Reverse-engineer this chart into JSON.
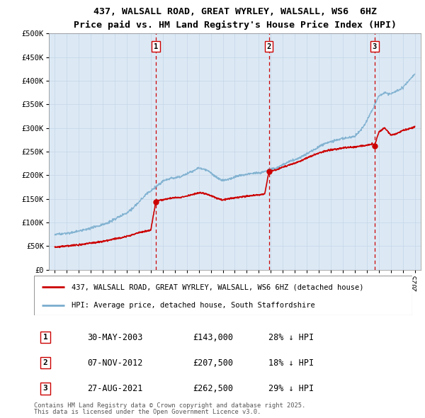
{
  "title": "437, WALSALL ROAD, GREAT WYRLEY, WALSALL, WS6  6HZ",
  "subtitle": "Price paid vs. HM Land Registry's House Price Index (HPI)",
  "background_color": "#dce9f5",
  "plot_bg_color": "#dce9f5",
  "ylim": [
    0,
    500000
  ],
  "yticks": [
    0,
    50000,
    100000,
    150000,
    200000,
    250000,
    300000,
    350000,
    400000,
    450000,
    500000
  ],
  "ytick_labels": [
    "£0",
    "£50K",
    "£100K",
    "£150K",
    "£200K",
    "£250K",
    "£300K",
    "£350K",
    "£400K",
    "£450K",
    "£500K"
  ],
  "xlim_start": 1994.5,
  "xlim_end": 2025.5,
  "sales": [
    {
      "year": 2003.41,
      "price": 143000,
      "label": "1"
    },
    {
      "year": 2012.84,
      "price": 207500,
      "label": "2"
    },
    {
      "year": 2021.65,
      "price": 262500,
      "label": "3"
    }
  ],
  "red_line_color": "#cc0000",
  "blue_line_color": "#7aadce",
  "marker_color": "#cc0000",
  "dashed_line_color": "#cc0000",
  "legend_label_red": "437, WALSALL ROAD, GREAT WYRLEY, WALSALL, WS6 6HZ (detached house)",
  "legend_label_blue": "HPI: Average price, detached house, South Staffordshire",
  "footer1": "Contains HM Land Registry data © Crown copyright and database right 2025.",
  "footer2": "This data is licensed under the Open Government Licence v3.0.",
  "table_rows": [
    {
      "num": "1",
      "date": "30-MAY-2003",
      "price": "£143,000",
      "pct": "28% ↓ HPI"
    },
    {
      "num": "2",
      "date": "07-NOV-2012",
      "price": "£207,500",
      "pct": "18% ↓ HPI"
    },
    {
      "num": "3",
      "date": "27-AUG-2021",
      "price": "£262,500",
      "pct": "29% ↓ HPI"
    }
  ],
  "hpi_anchors": [
    [
      1995.0,
      75000
    ],
    [
      1995.5,
      76000
    ],
    [
      1996.0,
      78000
    ],
    [
      1996.5,
      79500
    ],
    [
      1997.0,
      82000
    ],
    [
      1997.5,
      85000
    ],
    [
      1998.0,
      89000
    ],
    [
      1998.5,
      93000
    ],
    [
      1999.0,
      97000
    ],
    [
      1999.5,
      102000
    ],
    [
      2000.0,
      108000
    ],
    [
      2000.5,
      115000
    ],
    [
      2001.0,
      122000
    ],
    [
      2001.5,
      132000
    ],
    [
      2002.0,
      145000
    ],
    [
      2002.5,
      158000
    ],
    [
      2003.0,
      168000
    ],
    [
      2003.5,
      178000
    ],
    [
      2004.0,
      188000
    ],
    [
      2004.5,
      193000
    ],
    [
      2005.0,
      196000
    ],
    [
      2005.5,
      198000
    ],
    [
      2006.0,
      204000
    ],
    [
      2006.5,
      210000
    ],
    [
      2007.0,
      218000
    ],
    [
      2007.5,
      215000
    ],
    [
      2008.0,
      208000
    ],
    [
      2008.5,
      198000
    ],
    [
      2009.0,
      192000
    ],
    [
      2009.5,
      195000
    ],
    [
      2010.0,
      200000
    ],
    [
      2010.5,
      203000
    ],
    [
      2011.0,
      205000
    ],
    [
      2011.5,
      206000
    ],
    [
      2012.0,
      207000
    ],
    [
      2012.5,
      210000
    ],
    [
      2013.0,
      214000
    ],
    [
      2013.5,
      218000
    ],
    [
      2014.0,
      224000
    ],
    [
      2014.5,
      230000
    ],
    [
      2015.0,
      235000
    ],
    [
      2015.5,
      240000
    ],
    [
      2016.0,
      248000
    ],
    [
      2016.5,
      255000
    ],
    [
      2017.0,
      262000
    ],
    [
      2017.5,
      268000
    ],
    [
      2018.0,
      272000
    ],
    [
      2018.5,
      275000
    ],
    [
      2019.0,
      278000
    ],
    [
      2019.5,
      280000
    ],
    [
      2020.0,
      282000
    ],
    [
      2020.5,
      295000
    ],
    [
      2021.0,
      315000
    ],
    [
      2021.5,
      340000
    ],
    [
      2022.0,
      368000
    ],
    [
      2022.5,
      375000
    ],
    [
      2023.0,
      372000
    ],
    [
      2023.5,
      378000
    ],
    [
      2024.0,
      385000
    ],
    [
      2024.5,
      400000
    ],
    [
      2025.0,
      415000
    ]
  ],
  "red_anchors_base": [
    [
      1995.0,
      48000
    ],
    [
      1995.5,
      49000
    ],
    [
      1996.0,
      50000
    ],
    [
      1996.5,
      51000
    ],
    [
      1997.0,
      52500
    ],
    [
      1997.5,
      54000
    ],
    [
      1998.0,
      56000
    ],
    [
      1998.5,
      58000
    ],
    [
      1999.0,
      60000
    ],
    [
      1999.5,
      62000
    ],
    [
      2000.0,
      65000
    ],
    [
      2000.5,
      67000
    ],
    [
      2001.0,
      70000
    ],
    [
      2001.5,
      73000
    ],
    [
      2002.0,
      77000
    ],
    [
      2002.5,
      80000
    ],
    [
      2003.0,
      83000
    ],
    [
      2003.41,
      143000
    ],
    [
      2003.5,
      145000
    ],
    [
      2004.0,
      148000
    ],
    [
      2004.5,
      150000
    ],
    [
      2005.0,
      152000
    ],
    [
      2005.5,
      153000
    ],
    [
      2006.0,
      156000
    ],
    [
      2006.5,
      159000
    ],
    [
      2007.0,
      163000
    ],
    [
      2007.5,
      161000
    ],
    [
      2008.0,
      157000
    ],
    [
      2008.5,
      151000
    ],
    [
      2009.0,
      148000
    ],
    [
      2009.5,
      150000
    ],
    [
      2010.0,
      153000
    ],
    [
      2010.5,
      155000
    ],
    [
      2011.0,
      157000
    ],
    [
      2011.5,
      158000
    ],
    [
      2012.0,
      159000
    ],
    [
      2012.5,
      161000
    ],
    [
      2012.84,
      207500
    ],
    [
      2013.0,
      209000
    ],
    [
      2013.5,
      212000
    ],
    [
      2014.0,
      217000
    ],
    [
      2014.5,
      221000
    ],
    [
      2015.0,
      225000
    ],
    [
      2015.5,
      229000
    ],
    [
      2016.0,
      235000
    ],
    [
      2016.5,
      241000
    ],
    [
      2017.0,
      246000
    ],
    [
      2017.5,
      250000
    ],
    [
      2018.0,
      253000
    ],
    [
      2018.5,
      255000
    ],
    [
      2019.0,
      257000
    ],
    [
      2019.5,
      258000
    ],
    [
      2020.0,
      259000
    ],
    [
      2020.5,
      261000
    ],
    [
      2021.0,
      263000
    ],
    [
      2021.5,
      265000
    ],
    [
      2021.65,
      262500
    ],
    [
      2022.0,
      290000
    ],
    [
      2022.5,
      300000
    ],
    [
      2023.0,
      285000
    ],
    [
      2023.5,
      288000
    ],
    [
      2024.0,
      295000
    ],
    [
      2024.5,
      298000
    ],
    [
      2025.0,
      302000
    ]
  ]
}
